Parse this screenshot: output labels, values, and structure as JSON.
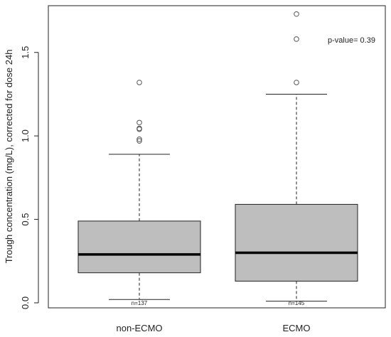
{
  "chart_data": {
    "type": "boxplot",
    "ylabel": "Trough concentration (mg/L), corrected for dose 24h",
    "ylim": [
      -0.03,
      1.78
    ],
    "yticks": [
      "0.0",
      "0.5",
      "1.0",
      "1.5"
    ],
    "annotation": "p-value= 0.39",
    "box_color": "#bebebe",
    "groups": [
      {
        "category": "non-ECMO",
        "n_label": "n=137",
        "whisker_low": 0.02,
        "q1": 0.18,
        "median": 0.29,
        "q3": 0.49,
        "whisker_high": 0.89,
        "outliers": [
          0.97,
          0.98,
          1.04,
          1.045,
          1.08,
          1.32
        ]
      },
      {
        "category": "ECMO",
        "n_label": "n=145",
        "whisker_low": 0.01,
        "q1": 0.13,
        "median": 0.3,
        "q3": 0.59,
        "whisker_high": 1.25,
        "outliers": [
          1.32,
          1.58,
          1.73
        ]
      }
    ]
  }
}
